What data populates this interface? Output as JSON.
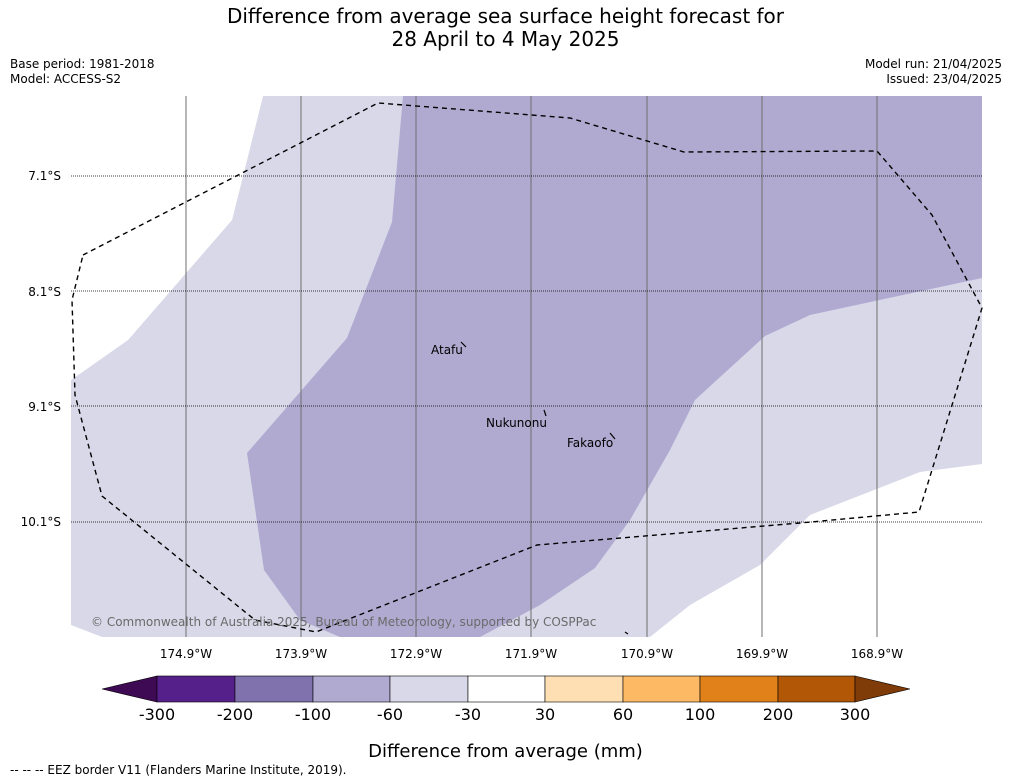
{
  "title": {
    "line1": "Difference from average sea surface height forecast for",
    "line2": "28 April to 4 May 2025"
  },
  "meta_left": {
    "base_period": "Base period: 1981-2018",
    "model": "Model: ACCESS-S2"
  },
  "meta_right": {
    "model_run": "Model run: 21/04/2025",
    "issued": "Issued: 23/04/2025"
  },
  "map": {
    "lat_labels": [
      "7.1°S",
      "8.1°S",
      "9.1°S",
      "10.1°S"
    ],
    "lon_labels": [
      "174.9°W",
      "173.9°W",
      "172.9°W",
      "171.9°W",
      "170.9°W",
      "169.9°W",
      "168.9°W"
    ],
    "places": [
      "Atafu",
      "Nukunonu",
      "Fakaofo"
    ],
    "copyright": "© Commonwealth of Australia 2025, Bureau of Meteorology, supported by COSPPac",
    "colors": {
      "light_lavender": "#d8d8e9",
      "mid_lavender": "#b0aad1"
    }
  },
  "colorbar": {
    "ticks": [
      "-300",
      "-200",
      "-100",
      "-60",
      "-30",
      "30",
      "60",
      "100",
      "200",
      "300"
    ],
    "colors": [
      "#3f0a54",
      "#56208b",
      "#8072ad",
      "#b0aad1",
      "#d8d8e9",
      "#ffffff",
      "#fedfb4",
      "#fdb963",
      "#e0811a",
      "#b15706",
      "#7f3b08"
    ],
    "label": "Difference from average (mm)"
  },
  "footer": "--  --  -- EEZ border V11 (Flanders Marine Institute, 2019)."
}
